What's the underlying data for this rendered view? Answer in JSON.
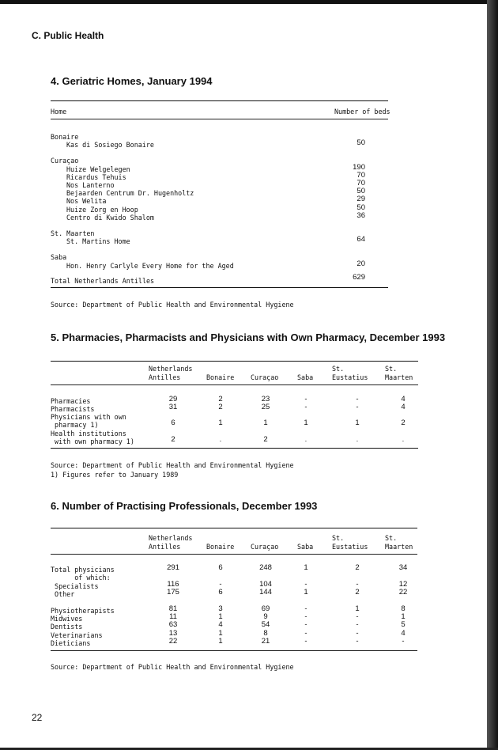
{
  "section": "C. Public Health",
  "table4": {
    "title": "4.   Geriatric Homes, January 1994",
    "col_home": "Home",
    "col_beds": "Number of beds",
    "groups": [
      {
        "name": "Bonaire",
        "items": [
          {
            "label": "Kas di Sosiego Bonaire",
            "beds": "50"
          }
        ]
      },
      {
        "name": "Curaçao",
        "items": [
          {
            "label": "Huize Welgelegen",
            "beds": "190"
          },
          {
            "label": "Ricardus Tehuis",
            "beds": "70"
          },
          {
            "label": "Nos Lanterno",
            "beds": "70"
          },
          {
            "label": "Bejaarden Centrum Dr. Hugenholtz",
            "beds": "50"
          },
          {
            "label": "Nos Welita",
            "beds": "29"
          },
          {
            "label": "Huize Zorg en Hoop",
            "beds": "50"
          },
          {
            "label": "Centro di Kwido Shalom",
            "beds": "36"
          }
        ]
      },
      {
        "name": "St. Maarten",
        "items": [
          {
            "label": "St. Martins Home",
            "beds": "64"
          }
        ]
      },
      {
        "name": "Saba",
        "items": [
          {
            "label": "Hon. Henry Carlyle Every Home for the Aged",
            "beds": "20"
          }
        ]
      }
    ],
    "total": {
      "label": "Total Netherlands Antilles",
      "beds": "629"
    },
    "source": "Source: Department of Public Health and Environmental Hygiene"
  },
  "table5": {
    "title": "5.   Pharmacies, Pharmacists and Physicians with Own Pharmacy, December 1993",
    "columns": [
      [
        "Netherlands",
        "Antilles"
      ],
      [
        "",
        "Bonaire"
      ],
      [
        "",
        "Curaçao"
      ],
      [
        "",
        "Saba"
      ],
      [
        "St.",
        "Eustatius"
      ],
      [
        "St.",
        "Maarten"
      ]
    ],
    "rows": [
      {
        "label": [
          "Pharmacies"
        ],
        "values": [
          "29",
          "2",
          "23",
          "-",
          "-",
          "4"
        ]
      },
      {
        "label": [
          "Pharmacists"
        ],
        "values": [
          "31",
          "2",
          "25",
          "-",
          "-",
          "4"
        ]
      },
      {
        "label": [
          "Physicians with own",
          " pharmacy 1)"
        ],
        "values": [
          "6",
          "1",
          "1",
          "1",
          "1",
          "2"
        ]
      },
      {
        "label": [
          "Health institutions",
          " with own pharmacy 1)"
        ],
        "values": [
          "2",
          ".",
          "2",
          ".",
          ".",
          "."
        ]
      }
    ],
    "source": "Source: Department of Public Health and Environmental Hygiene",
    "footnote": "1) Figures refer to January 1989"
  },
  "table6": {
    "title": "6.   Number of Practising Professionals, December 1993",
    "columns": [
      [
        "Netherlands",
        "Antilles"
      ],
      [
        "",
        "Bonaire"
      ],
      [
        "",
        "Curaçao"
      ],
      [
        "",
        "Saba"
      ],
      [
        "St.",
        "Eustatius"
      ],
      [
        "St.",
        "Maarten"
      ]
    ],
    "rows": [
      {
        "label": [
          "Total physicians",
          "      of which:"
        ],
        "values": [
          "291",
          "6",
          "248",
          "1",
          "2",
          "34"
        ]
      },
      {
        "label": [
          " Specialists"
        ],
        "values": [
          "116",
          "-",
          "104",
          "-",
          "-",
          "12"
        ]
      },
      {
        "label": [
          " Other"
        ],
        "values": [
          "175",
          "6",
          "144",
          "1",
          "2",
          "22"
        ]
      },
      {
        "label": [
          "Physiotherapists"
        ],
        "values": [
          "81",
          "3",
          "69",
          "-",
          "1",
          "8"
        ],
        "gap": true
      },
      {
        "label": [
          "Midwives"
        ],
        "values": [
          "11",
          "1",
          "9",
          "-",
          "-",
          "1"
        ]
      },
      {
        "label": [
          "Dentists"
        ],
        "values": [
          "63",
          "4",
          "54",
          "-",
          "-",
          "5"
        ]
      },
      {
        "label": [
          "Veterinarians"
        ],
        "values": [
          "13",
          "1",
          "8",
          "-",
          "-",
          "4"
        ]
      },
      {
        "label": [
          "Dieticians"
        ],
        "values": [
          "22",
          "1",
          "21",
          "-",
          "-",
          "-"
        ]
      }
    ],
    "source": "Source: Department of Public Health and Environmental Hygiene"
  },
  "page_number": "22"
}
